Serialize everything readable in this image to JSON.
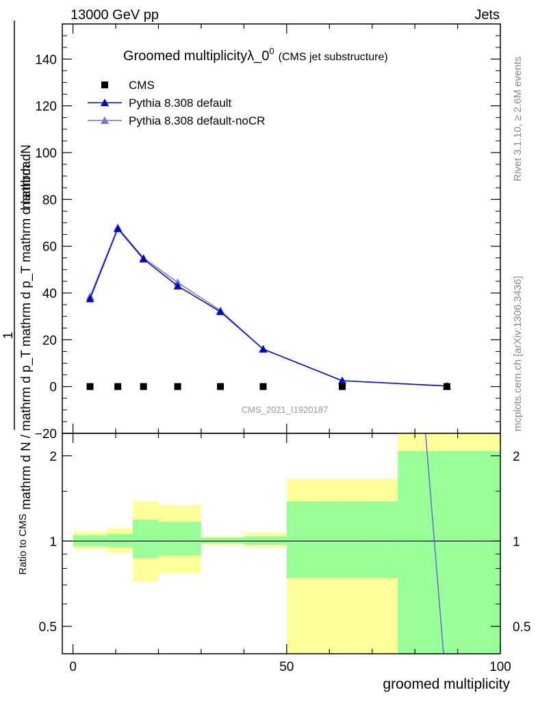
{
  "header": {
    "left": "13000 GeV pp",
    "right": "Jets"
  },
  "side_labels": {
    "rivet": "Rivet 3.1.10, ≥ 2.6M events",
    "mcplots": "mcplots.cern.ch [arXiv:1306.3436]"
  },
  "chart_data": {
    "type": "line",
    "title": "Groomed multiplicityλ_0",
    "title_superscript": "0",
    "subtitle": "(CMS jet substructure)",
    "watermark": "CMS_2021_I1920187",
    "ylabel_upper": "mathrm dN",
    "ylabel_lower": "mathrm d N / mathrm d p_T mathrm d p_T mathrm d lambda",
    "ylabel_prefix": "1",
    "ylabel_ratio": "Ratio to CMS",
    "xlabel": "groomed multiplicity",
    "xlim": [
      -2.5,
      100
    ],
    "ylim": [
      -20,
      155
    ],
    "ratio_ylim": [
      0.4,
      2.4
    ],
    "x_ticks": [
      "0",
      "50",
      "100"
    ],
    "y_ticks": [
      "−20",
      "0",
      "20",
      "40",
      "60",
      "80",
      "100",
      "120",
      "140"
    ],
    "ratio_ticks": [
      "0.5",
      "1",
      "2"
    ],
    "legend": [
      "CMS",
      "Pythia 8.308 default",
      "Pythia 8.308 default-noCR"
    ],
    "legend_placement": "top-left",
    "grid": false,
    "bins": [
      [
        0,
        8
      ],
      [
        8,
        14
      ],
      [
        14,
        20
      ],
      [
        20,
        30
      ],
      [
        30,
        40
      ],
      [
        40,
        50
      ],
      [
        50,
        76
      ],
      [
        76,
        100
      ]
    ],
    "series": [
      {
        "name": "CMS",
        "color": "#000000",
        "x": [
          4,
          10.5,
          16.5,
          24.5,
          34.5,
          44.5,
          63,
          87.5
        ],
        "y": [
          0,
          0,
          0,
          0,
          0,
          0,
          0,
          0
        ]
      },
      {
        "name": "Pythia 8.308 default",
        "color": "#0000cc",
        "x": [
          4,
          10.5,
          16.5,
          24.5,
          34.5,
          44.5,
          63,
          87.5
        ],
        "y": [
          37.5,
          67.5,
          54.5,
          43.0,
          32.0,
          16.0,
          2.5,
          0.2
        ]
      },
      {
        "name": "Pythia 8.308 default-noCR",
        "color": "#7777cc",
        "x": [
          4,
          10.5,
          16.5,
          24.5,
          34.5,
          44.5,
          63,
          87.5
        ],
        "y": [
          38.5,
          68.0,
          55.0,
          44.5,
          32.5,
          16.0,
          2.5,
          0.3
        ]
      }
    ],
    "ratio_bands": {
      "yellow": [
        [
          0.94,
          1.08
        ],
        [
          0.91,
          1.11
        ],
        [
          0.72,
          1.38
        ],
        [
          0.77,
          1.34
        ],
        [
          0.97,
          1.04
        ],
        [
          0.95,
          1.07
        ],
        [
          0.38,
          1.66
        ],
        [
          0.38,
          2.4
        ]
      ],
      "green": [
        [
          0.96,
          1.05
        ],
        [
          0.95,
          1.06
        ],
        [
          0.87,
          1.19
        ],
        [
          0.89,
          1.17
        ],
        [
          0.98,
          1.03
        ],
        [
          0.97,
          1.04
        ],
        [
          0.74,
          1.38
        ],
        [
          0.38,
          2.08
        ]
      ]
    },
    "ratio_line": {
      "x": [
        82.5,
        86.7
      ],
      "y": [
        2.4,
        0.38
      ]
    }
  }
}
